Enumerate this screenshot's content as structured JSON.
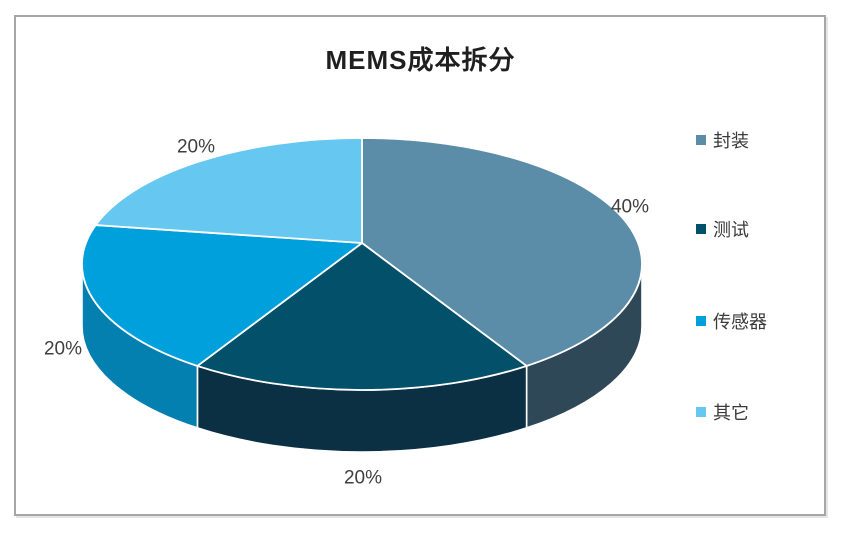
{
  "title": "MEMS成本拆分",
  "chart_data": {
    "type": "pie",
    "effect": "3d",
    "title": "MEMS成本拆分",
    "categories": [
      "封装",
      "测试",
      "传感器",
      "其它"
    ],
    "values": [
      40,
      20,
      20,
      20
    ],
    "data_labels": [
      "40%",
      "20%",
      "20%",
      "20%"
    ],
    "colors": [
      "#5B8CA8",
      "#03506A",
      "#00A0DC",
      "#66C7F0"
    ],
    "side_colors": [
      "#2F4858",
      "#0B3044",
      "#0380B0",
      "#3D97C4"
    ],
    "start_angle": 0,
    "direction": "clockwise",
    "legend_position": "right",
    "label_color": "#3F3F3F",
    "divider_color": "#FFFFFF"
  }
}
